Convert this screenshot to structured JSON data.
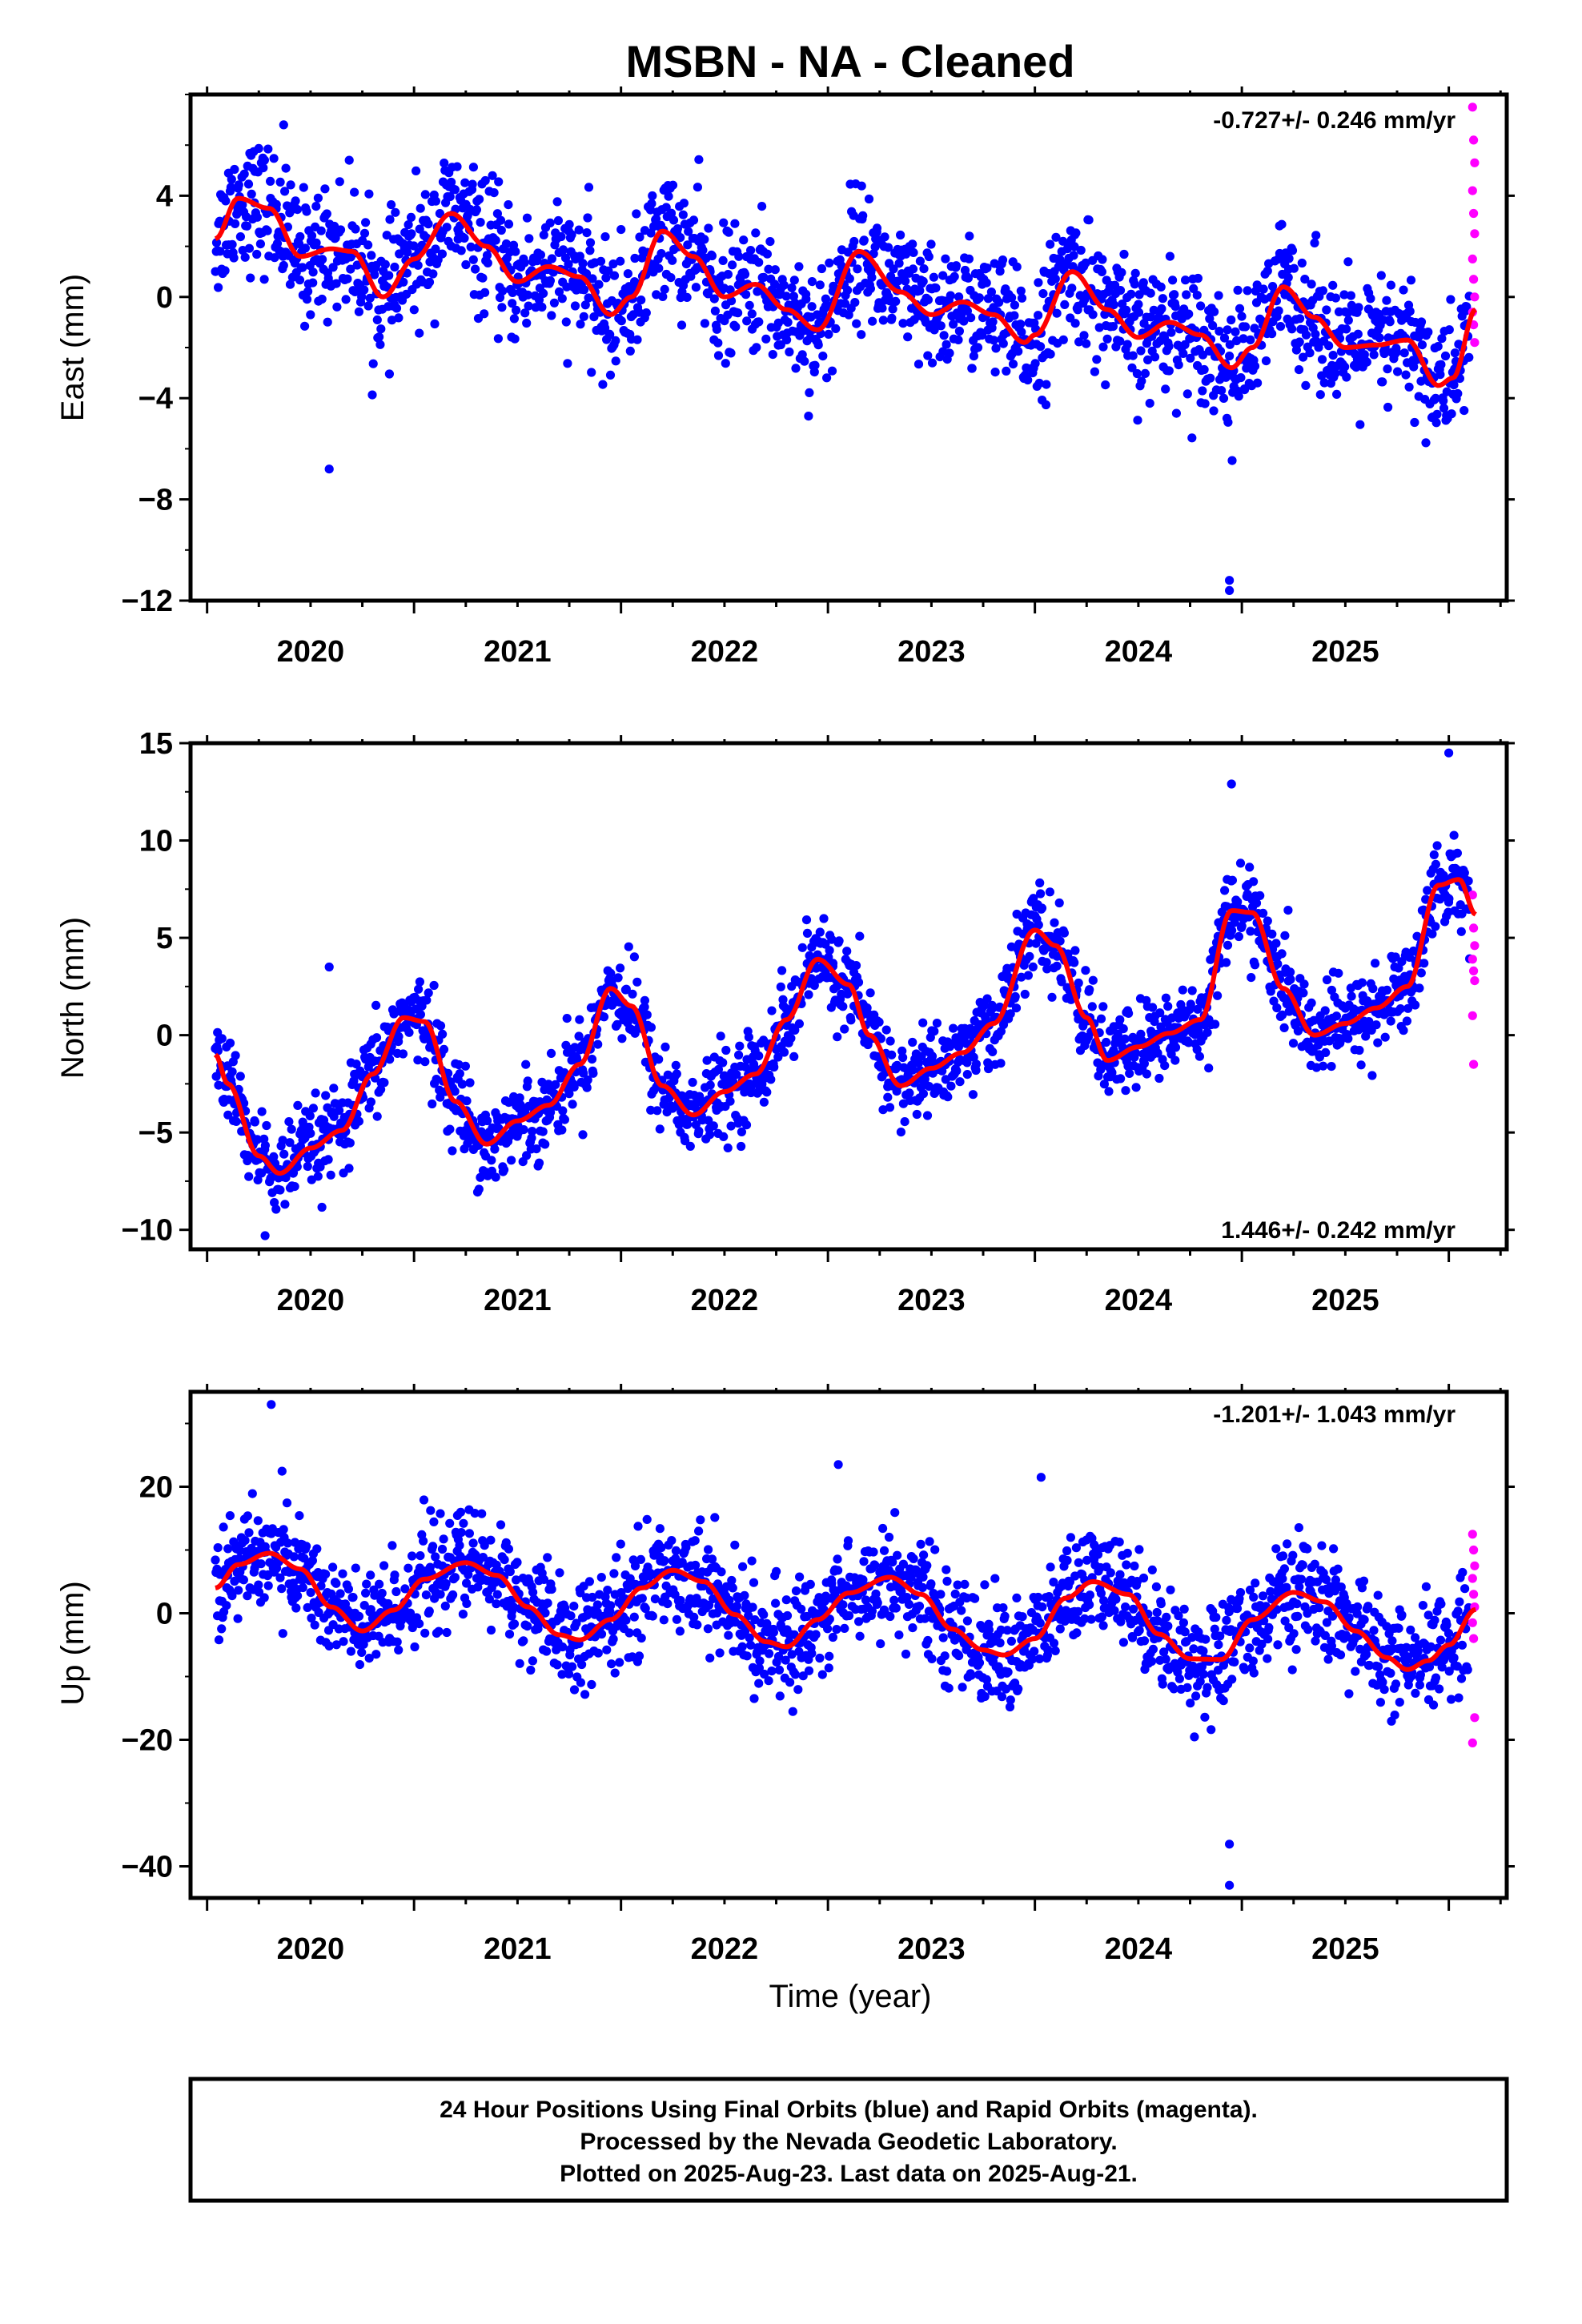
{
  "title": "MSBN  - NA - Cleaned",
  "colors": {
    "final_orbits": "#0000ff",
    "rapid_orbits": "#ff00ff",
    "model_fit": "#ff0000",
    "frame": "#000000"
  },
  "footer": {
    "line1": "24 Hour Positions Using Final Orbits (blue) and Rapid Orbits (magenta).",
    "line2": "Processed by the Nevada Geodetic Laboratory.",
    "line3": "Plotted on 2025-Aug-23. Last data on 2025-Aug-21."
  },
  "chart_data": [
    {
      "type": "scatter",
      "component": "East",
      "ylabel": "East (mm)",
      "xlabel": "",
      "rate_label": "-0.727+/- 0.246 mm/yr",
      "rate_position": "top-right",
      "xlim": [
        2019.42,
        2025.78
      ],
      "ylim": [
        -12,
        8
      ],
      "yticks": [
        4,
        0,
        -4,
        -8,
        -12
      ],
      "yticklabels": [
        "4",
        "0",
        "−4",
        "−8",
        "−12"
      ],
      "xticks": [
        2020,
        2021,
        2022,
        2023,
        2024,
        2025
      ],
      "xticklabels": [
        "2020",
        "2021",
        "2022",
        "2023",
        "2024",
        "2025"
      ],
      "model": {
        "name": "model fit",
        "x": [
          2019.54,
          2019.65,
          2019.8,
          2019.95,
          2020.1,
          2020.2,
          2020.35,
          2020.5,
          2020.68,
          2020.85,
          2021.0,
          2021.15,
          2021.3,
          2021.45,
          2021.55,
          2021.7,
          2021.85,
          2022.0,
          2022.15,
          2022.3,
          2022.45,
          2022.65,
          2022.85,
          2023.0,
          2023.15,
          2023.3,
          2023.45,
          2023.5,
          2023.68,
          2023.85,
          2024.0,
          2024.15,
          2024.3,
          2024.45,
          2024.55,
          2024.7,
          2024.85,
          2025.0,
          2025.15,
          2025.3,
          2025.45,
          2025.52,
          2025.63
        ],
        "y": [
          2.3,
          3.9,
          3.5,
          1.6,
          1.9,
          1.8,
          0.0,
          1.5,
          3.3,
          2.0,
          0.6,
          1.2,
          0.8,
          -0.7,
          0.0,
          2.6,
          1.6,
          0.0,
          0.5,
          -0.5,
          -1.3,
          1.8,
          0.2,
          -0.7,
          -0.2,
          -0.7,
          -1.8,
          -1.5,
          1.0,
          -0.5,
          -1.6,
          -1.0,
          -1.5,
          -2.8,
          -2.0,
          0.4,
          -0.8,
          -2.0,
          -1.9,
          -1.7,
          -3.5,
          -3.2,
          -0.5
        ]
      },
      "series": [
        {
          "name": "Final Orbits",
          "color": "#0000ff",
          "density": 1860,
          "outliers": [
            [
              2019.87,
              6.8
            ],
            [
              2020.09,
              -6.8
            ],
            [
              2024.44,
              -11.2
            ],
            [
              2024.44,
              -11.6
            ]
          ]
        },
        {
          "name": "Rapid Orbits",
          "color": "#ff00ff",
          "values_sample": [
            7.5,
            6.2,
            5.3,
            4.2,
            3.3,
            2.5,
            1.5,
            0.7,
            0.0,
            -0.6,
            -1.1,
            -1.8
          ]
        }
      ]
    },
    {
      "type": "scatter",
      "component": "North",
      "ylabel": "North (mm)",
      "xlabel": "",
      "rate_label": "1.446+/- 0.242 mm/yr",
      "rate_position": "bottom-right",
      "xlim": [
        2019.42,
        2025.78
      ],
      "ylim": [
        -11,
        15
      ],
      "yticks": [
        15,
        10,
        5,
        0,
        -5,
        -10
      ],
      "yticklabels": [
        "15",
        "10",
        "5",
        "0",
        "−5",
        "−10"
      ],
      "xticks": [
        2020,
        2021,
        2022,
        2023,
        2024,
        2025
      ],
      "xticklabels": [
        "2020",
        "2021",
        "2022",
        "2023",
        "2024",
        "2025"
      ],
      "model": {
        "name": "model fit",
        "x": [
          2019.54,
          2019.6,
          2019.75,
          2019.85,
          2020.0,
          2020.15,
          2020.3,
          2020.45,
          2020.55,
          2020.7,
          2020.85,
          2021.0,
          2021.15,
          2021.3,
          2021.45,
          2021.55,
          2021.7,
          2021.85,
          2022.0,
          2022.15,
          2022.3,
          2022.45,
          2022.6,
          2022.7,
          2022.85,
          2023.0,
          2023.15,
          2023.3,
          2023.5,
          2023.6,
          2023.75,
          2023.85,
          2024.0,
          2024.15,
          2024.3,
          2024.45,
          2024.55,
          2024.7,
          2024.85,
          2025.0,
          2025.15,
          2025.3,
          2025.45,
          2025.55,
          2025.63
        ],
        "y": [
          -1.0,
          -2.5,
          -6.2,
          -7.1,
          -5.8,
          -4.9,
          -2.0,
          0.9,
          0.7,
          -3.4,
          -5.6,
          -4.4,
          -3.6,
          -1.5,
          2.4,
          1.5,
          -2.6,
          -4.1,
          -2.9,
          -2.0,
          0.8,
          3.9,
          2.6,
          0.0,
          -2.6,
          -1.7,
          -0.9,
          0.6,
          5.4,
          4.6,
          0.9,
          -1.3,
          -0.6,
          0.1,
          0.8,
          6.4,
          6.3,
          2.4,
          0.0,
          0.6,
          1.4,
          2.5,
          7.7,
          8.0,
          6.2
        ]
      },
      "series": [
        {
          "name": "Final Orbits",
          "color": "#0000ff",
          "density": 1860,
          "outliers": [
            [
              2019.78,
              -10.3
            ],
            [
              2020.09,
              3.5
            ],
            [
              2024.45,
              12.9
            ],
            [
              2025.5,
              14.5
            ]
          ]
        },
        {
          "name": "Rapid Orbits",
          "color": "#ff00ff",
          "values_sample": [
            7.2,
            5.5,
            4.6,
            3.9,
            3.3,
            2.8,
            1.0,
            -1.5
          ]
        }
      ]
    },
    {
      "type": "scatter",
      "component": "Up",
      "ylabel": "Up (mm)",
      "xlabel": "Time (year)",
      "rate_label": "-1.201+/- 1.043 mm/yr",
      "rate_position": "top-right",
      "xlim": [
        2019.42,
        2025.78
      ],
      "ylim": [
        -45,
        35
      ],
      "yticks": [
        20,
        0,
        -20,
        -40
      ],
      "yticklabels": [
        "20",
        "0",
        "−20",
        "−40"
      ],
      "xticks": [
        2020,
        2021,
        2022,
        2023,
        2024,
        2025
      ],
      "xticklabels": [
        "2020",
        "2021",
        "2022",
        "2023",
        "2024",
        "2025"
      ],
      "model": {
        "name": "model fit",
        "x": [
          2019.54,
          2019.65,
          2019.8,
          2019.95,
          2020.1,
          2020.25,
          2020.4,
          2020.55,
          2020.75,
          2020.9,
          2021.05,
          2021.2,
          2021.3,
          2021.45,
          2021.6,
          2021.75,
          2021.9,
          2022.05,
          2022.2,
          2022.3,
          2022.45,
          2022.6,
          2022.8,
          2022.95,
          2023.1,
          2023.25,
          2023.35,
          2023.5,
          2023.65,
          2023.78,
          2023.95,
          2024.1,
          2024.25,
          2024.4,
          2024.55,
          2024.75,
          2024.9,
          2025.05,
          2025.2,
          2025.3,
          2025.4,
          2025.5,
          2025.63
        ],
        "y": [
          4.0,
          7.7,
          9.5,
          7.0,
          1.0,
          -2.8,
          0.5,
          5.4,
          8.0,
          6.0,
          1.0,
          -3.4,
          -4.2,
          -1.0,
          4.0,
          6.8,
          5.0,
          -0.2,
          -4.5,
          -5.3,
          -1.0,
          3.2,
          5.7,
          3.0,
          -2.5,
          -5.8,
          -6.6,
          -4.0,
          2.4,
          5.0,
          3.0,
          -3.3,
          -7.2,
          -7.3,
          -1.0,
          3.3,
          1.8,
          -2.8,
          -7.0,
          -8.9,
          -7.5,
          -5.0,
          0.6
        ]
      },
      "series": [
        {
          "name": "Final Orbits",
          "color": "#0000ff",
          "density": 1860,
          "outliers": [
            [
              2019.81,
              33.0
            ],
            [
              2024.44,
              -36.5
            ],
            [
              2024.44,
              -43.0
            ],
            [
              2022.55,
              23.5
            ],
            [
              2023.53,
              21.5
            ]
          ]
        },
        {
          "name": "Rapid Orbits",
          "color": "#ff00ff",
          "values_sample": [
            12.5,
            10.0,
            7.5,
            5.5,
            3.0,
            1.0,
            -1.5,
            -4.0,
            -16.5,
            -20.5
          ]
        }
      ]
    }
  ]
}
